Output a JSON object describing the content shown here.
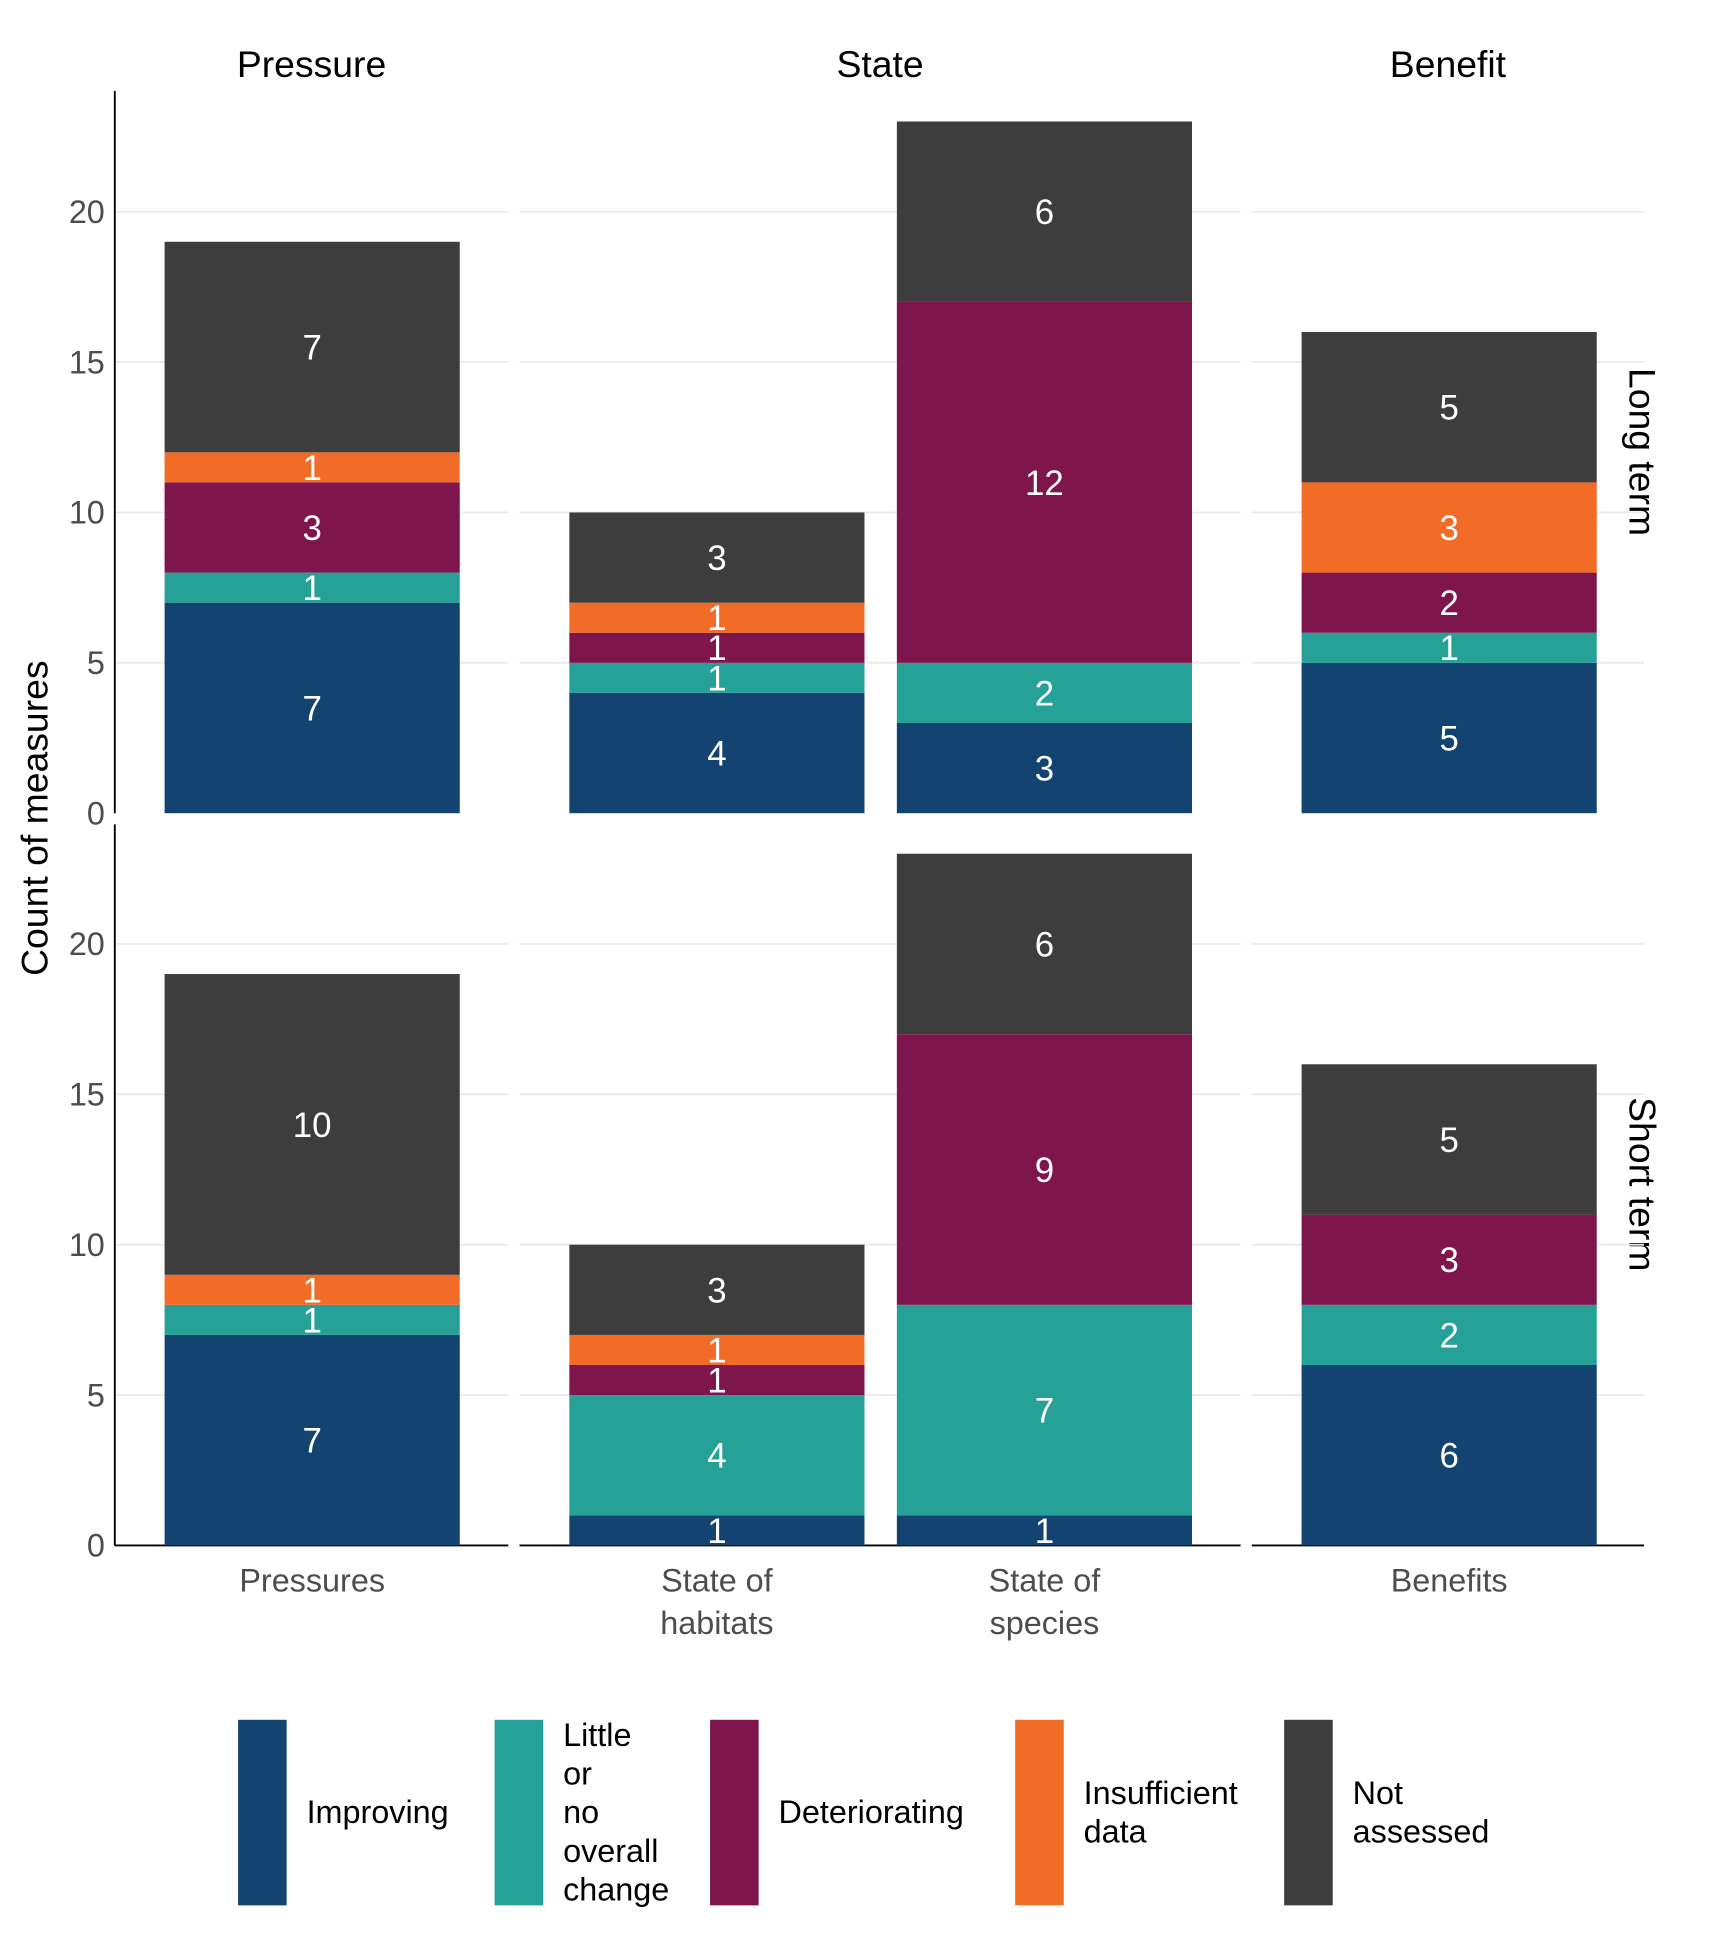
{
  "chart_data": {
    "type": "bar",
    "stacked": true,
    "ylabel": "Count of measures",
    "ylim": [
      0,
      24
    ],
    "yticks": [
      0,
      5,
      10,
      15,
      20
    ],
    "grid": true,
    "legend_position": "bottom",
    "column_facets": [
      {
        "label": "Pressure",
        "categories": [
          "Pressures"
        ]
      },
      {
        "label": "State",
        "categories": [
          "State of habitats",
          "State of species"
        ]
      },
      {
        "label": "Benefit",
        "categories": [
          "Benefits"
        ]
      }
    ],
    "row_facets": [
      "Long term",
      "Short term"
    ],
    "series": [
      {
        "name": "Improving",
        "color": "#134370"
      },
      {
        "name": "Little or no overall change",
        "color": "#26A197"
      },
      {
        "name": "Deteriorating",
        "color": "#7E154C"
      },
      {
        "name": "Insufficient data",
        "color": "#F26B27"
      },
      {
        "name": "Not assessed",
        "color": "#3D3D3D"
      }
    ],
    "values": {
      "Long term": {
        "Pressures": [
          7,
          1,
          3,
          1,
          7
        ],
        "State of habitats": [
          4,
          1,
          1,
          1,
          3
        ],
        "State of species": [
          3,
          2,
          12,
          0,
          6
        ],
        "Benefits": [
          5,
          1,
          2,
          3,
          5
        ]
      },
      "Short term": {
        "Pressures": [
          7,
          1,
          0,
          1,
          10
        ],
        "State of habitats": [
          1,
          4,
          1,
          1,
          3
        ],
        "State of species": [
          1,
          7,
          9,
          0,
          6
        ],
        "Benefits": [
          6,
          2,
          3,
          0,
          5
        ]
      }
    },
    "x_tick_labels": {
      "Pressures": [
        "Pressures"
      ],
      "State of habitats": [
        "State of",
        "habitats"
      ],
      "State of species": [
        "State of",
        "species"
      ],
      "Benefits": [
        "Benefits"
      ]
    },
    "legend_labels": [
      [
        "Improving"
      ],
      [
        "Little",
        "or",
        "no",
        "overall",
        "change"
      ],
      [
        "Deteriorating"
      ],
      [
        "Insufficient",
        "data"
      ],
      [
        "Not",
        "assessed"
      ]
    ]
  }
}
